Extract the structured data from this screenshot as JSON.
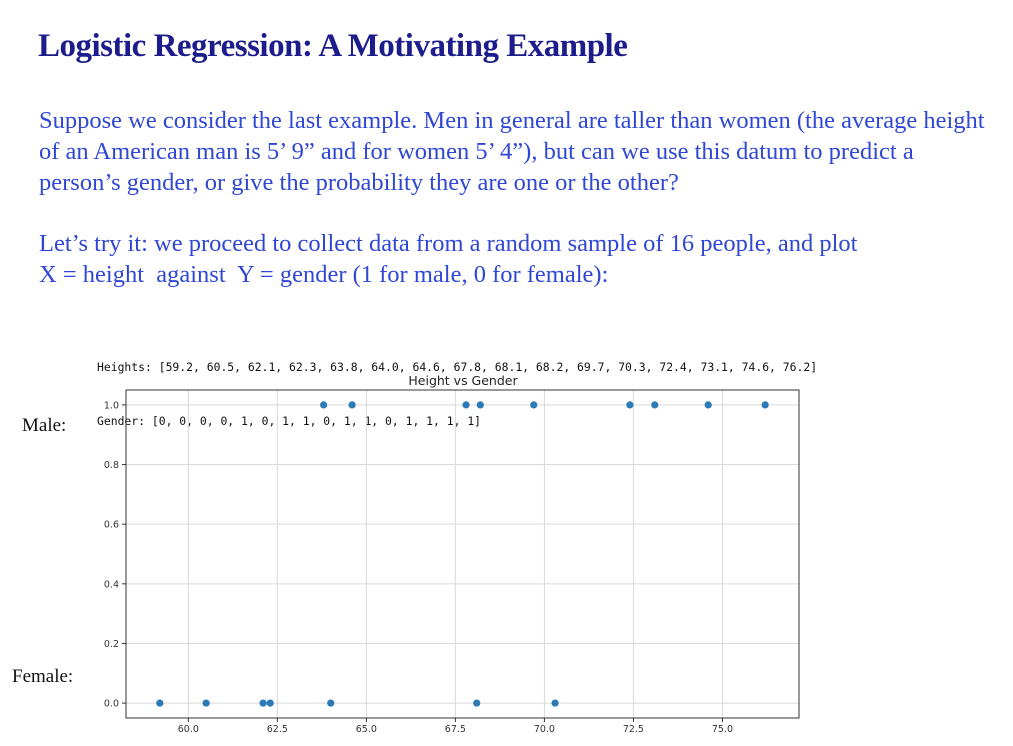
{
  "slide": {
    "title": "Logistic Regression: A Motivating Example",
    "paragraph1": "Suppose we consider the last example. Men in general are taller than women (the average height of an American man is 5’ 9” and for women 5’ 4”), but can we use this datum to predict a person’s gender, or give the probability they are one or the other?",
    "paragraph2_line1": "Let’s try it: we proceed to collect data from a random sample of 16 people, and plot",
    "paragraph2_line2": "X = height  against  Y = gender (1 for male, 0 for female):"
  },
  "code": {
    "heights_line": "Heights: [59.2, 60.5, 62.1, 62.3, 63.8, 64.0, 64.6, 67.8, 68.1, 68.2, 69.7, 70.3, 72.4, 73.1, 74.6, 76.2]",
    "gender_line": "Gender: [0, 0, 0, 0, 1, 0, 1, 1, 0, 1, 1, 0, 1, 1, 1, 1]"
  },
  "labels": {
    "male": "Male:",
    "female": "Female:"
  },
  "colors": {
    "title": "#1c1c8c",
    "body_text": "#2f47d4",
    "point": "#2c7bb6",
    "grid": "#d9d9d9"
  },
  "chart_data": {
    "type": "scatter",
    "title": "Height vs Gender",
    "xlabel": "",
    "ylabel": "",
    "x": [
      59.2,
      60.5,
      62.1,
      62.3,
      63.8,
      64.0,
      64.6,
      67.8,
      68.1,
      68.2,
      69.7,
      70.3,
      72.4,
      73.1,
      74.6,
      76.2
    ],
    "y": [
      0,
      0,
      0,
      0,
      1,
      0,
      1,
      1,
      0,
      1,
      1,
      0,
      1,
      1,
      1,
      1
    ],
    "xlim": [
      58.25,
      77.15
    ],
    "ylim": [
      -0.05,
      1.05
    ],
    "xticks": [
      60.0,
      62.5,
      65.0,
      67.5,
      70.0,
      72.5,
      75.0
    ],
    "xtick_labels": [
      "60.0",
      "62.5",
      "65.0",
      "67.5",
      "70.0",
      "72.5",
      "75.0"
    ],
    "yticks": [
      0.0,
      0.2,
      0.4,
      0.6,
      0.8,
      1.0
    ],
    "ytick_labels": [
      "0.0",
      "0.2",
      "0.4",
      "0.6",
      "0.8",
      "1.0"
    ],
    "grid": true,
    "legend": "none"
  }
}
